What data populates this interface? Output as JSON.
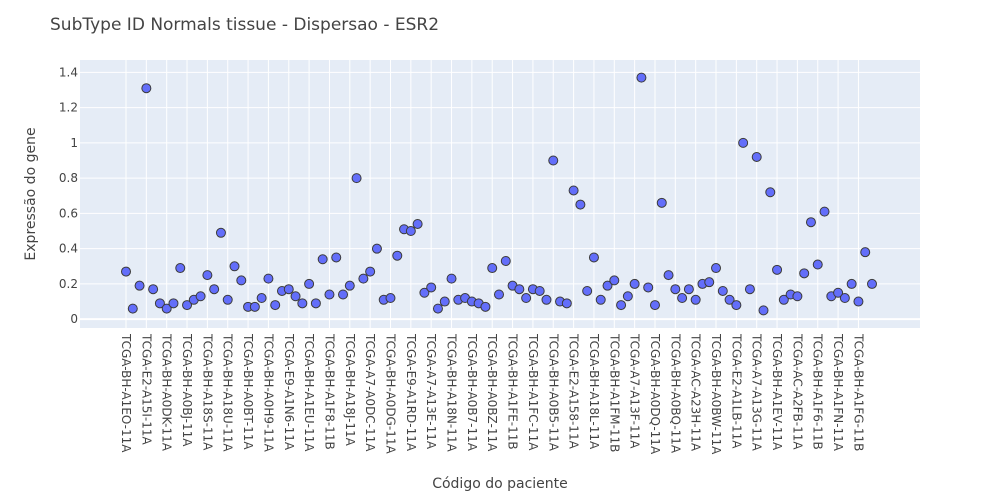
{
  "chart_data": {
    "type": "scatter",
    "title": "SubType ID Normals tissue - Dispersao - ESR2",
    "xlabel": "Código do paciente",
    "ylabel": "Expressão do gene",
    "ylim": [
      -0.05,
      1.47
    ],
    "yticks": [
      0,
      0.2,
      0.4,
      0.6,
      0.8,
      1,
      1.2,
      1.4
    ],
    "ytick_labels": [
      "0",
      "0.2",
      "0.4",
      "0.6",
      "0.8",
      "1",
      "1.2",
      "1.4"
    ],
    "grid": true,
    "legend": "none",
    "marker_color": "#636efa",
    "plot_background": "#e5ecf6",
    "xtick_labels": [
      "TCGA-BH-A1EO-11A",
      "TCGA-E2-A15I-11A",
      "TCGA-BH-A0DK-11A",
      "TCGA-BH-A0BJ-11A",
      "TCGA-BH-A18S-11A",
      "TCGA-BH-A18U-11A",
      "TCGA-BH-A0BT-11A",
      "TCGA-BH-A0H9-11A",
      "TCGA-E9-A1N6-11A",
      "TCGA-BH-A1EU-11A",
      "TCGA-BH-A1F8-11B",
      "TCGA-BH-A18J-11A",
      "TCGA-A7-A0DC-11A",
      "TCGA-BH-A0DG-11A",
      "TCGA-E9-A1RD-11A",
      "TCGA-A7-A13E-11A",
      "TCGA-BH-A18N-11A",
      "TCGA-BH-A0B7-11A",
      "TCGA-BH-A0BZ-11A",
      "TCGA-BH-A1FE-11B",
      "TCGA-BH-A1FC-11A",
      "TCGA-BH-A0B5-11A",
      "TCGA-E2-A158-11A",
      "TCGA-BH-A18L-11A",
      "TCGA-BH-A1FM-11B",
      "TCGA-A7-A13F-11A",
      "TCGA-BH-A0DQ-11A",
      "TCGA-BH-A0BQ-11A",
      "TCGA-AC-A23H-11A",
      "TCGA-BH-A0BW-11A",
      "TCGA-E2-A1LB-11A",
      "TCGA-A7-A13G-11A",
      "TCGA-BH-A1EV-11A",
      "TCGA-AC-A2FB-11A",
      "TCGA-BH-A1F6-11B",
      "TCGA-BH-A1FN-11A",
      "TCGA-BH-A1FG-11B"
    ],
    "x_count": 111,
    "y": [
      0.27,
      0.06,
      0.19,
      1.31,
      0.17,
      0.09,
      0.06,
      0.09,
      0.29,
      0.08,
      0.11,
      0.13,
      0.25,
      0.17,
      0.49,
      0.11,
      0.3,
      0.22,
      0.07,
      0.07,
      0.12,
      0.23,
      0.08,
      0.16,
      0.17,
      0.13,
      0.09,
      0.2,
      0.09,
      0.34,
      0.14,
      0.35,
      0.14,
      0.19,
      0.8,
      0.23,
      0.27,
      0.4,
      0.11,
      0.12,
      0.36,
      0.51,
      0.5,
      0.54,
      0.15,
      0.18,
      0.06,
      0.1,
      0.23,
      0.11,
      0.12,
      0.1,
      0.09,
      0.07,
      0.29,
      0.14,
      0.33,
      0.19,
      0.17,
      0.12,
      0.17,
      0.16,
      0.11,
      0.9,
      0.1,
      0.09,
      0.73,
      0.65,
      0.16,
      0.35,
      0.11,
      0.19,
      0.22,
      0.08,
      0.13,
      0.2,
      1.37,
      0.18,
      0.08,
      0.66,
      0.25,
      0.17,
      0.12,
      0.17,
      0.11,
      0.2,
      0.21,
      0.29,
      0.16,
      0.11,
      0.08,
      1.0,
      0.17,
      0.92,
      0.05,
      0.72,
      0.28,
      0.11,
      0.14,
      0.13,
      0.26,
      0.55,
      0.31,
      0.61,
      0.13,
      0.15,
      0.12,
      0.2,
      0.1,
      0.38,
      0.2
    ]
  }
}
